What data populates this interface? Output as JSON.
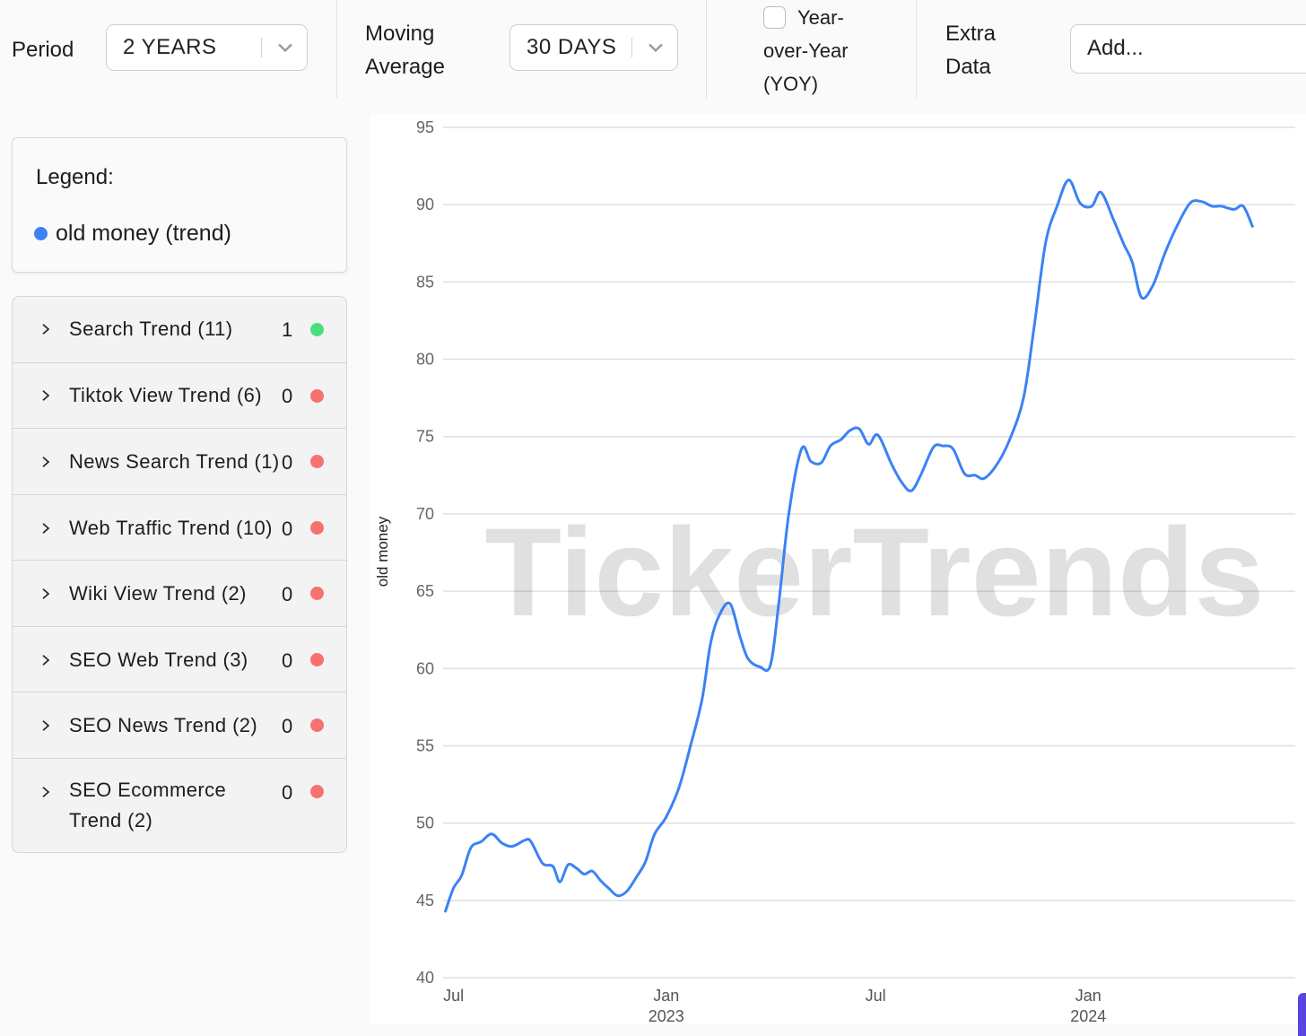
{
  "toolbar": {
    "period_label": "Period",
    "period_value": "2 YEARS",
    "moving_avg_label_line1": "Moving",
    "moving_avg_label_line2": "Average",
    "moving_avg_value": "30 DAYS",
    "yoy_line1": "Year-",
    "yoy_line2": "over-Year",
    "yoy_line3": "(YOY)",
    "yoy_checked": false,
    "extra_label_line1": "Extra",
    "extra_label_line2": "Data",
    "extra_placeholder": "Add..."
  },
  "legend": {
    "title": "Legend:",
    "items": [
      {
        "label": "old money (trend)",
        "color": "#3b82f6"
      }
    ]
  },
  "trend_groups": [
    {
      "label": "Search Trend (11)",
      "count": "1",
      "status_color": "#4ade80"
    },
    {
      "label": "Tiktok View Trend (6)",
      "count": "0",
      "status_color": "#f87171"
    },
    {
      "label": "News Search Trend (1)",
      "count": "0",
      "status_color": "#f87171"
    },
    {
      "label": "Web Traffic Trend (10)",
      "count": "0",
      "status_color": "#f87171"
    },
    {
      "label": "Wiki View Trend (2)",
      "count": "0",
      "status_color": "#f87171"
    },
    {
      "label": "SEO Web Trend (3)",
      "count": "0",
      "status_color": "#f87171"
    },
    {
      "label": "SEO News Trend (2)",
      "count": "0",
      "status_color": "#f87171"
    },
    {
      "label": "SEO Ecommerce Trend (2)",
      "count": "0",
      "status_color": "#f87171"
    }
  ],
  "watermark": "TickerTrends",
  "chart_data": {
    "type": "line",
    "ylabel": "old money",
    "ylim": [
      40,
      95
    ],
    "yticks": [
      40,
      45,
      50,
      55,
      60,
      65,
      70,
      75,
      80,
      85,
      90,
      95
    ],
    "xlim": [
      "2022-06-22",
      "2024-06-28"
    ],
    "xticks": [
      {
        "date": "2022-07-01",
        "label": "Jul",
        "sub": ""
      },
      {
        "date": "2023-01-01",
        "label": "Jan",
        "sub": "2023"
      },
      {
        "date": "2023-07-01",
        "label": "Jul",
        "sub": ""
      },
      {
        "date": "2024-01-01",
        "label": "Jan",
        "sub": "2024"
      }
    ],
    "grid": true,
    "line_color": "#3b82f6",
    "series": [
      {
        "name": "old money (trend)",
        "points": [
          [
            "2022-06-24",
            44.3
          ],
          [
            "2022-07-01",
            45.8
          ],
          [
            "2022-07-08",
            46.6
          ],
          [
            "2022-07-16",
            48.4
          ],
          [
            "2022-07-25",
            48.8
          ],
          [
            "2022-08-03",
            49.3
          ],
          [
            "2022-08-12",
            48.7
          ],
          [
            "2022-08-21",
            48.5
          ],
          [
            "2022-09-01",
            48.9
          ],
          [
            "2022-09-06",
            48.8
          ],
          [
            "2022-09-16",
            47.4
          ],
          [
            "2022-09-25",
            47.2
          ],
          [
            "2022-10-01",
            46.2
          ],
          [
            "2022-10-08",
            47.3
          ],
          [
            "2022-10-15",
            47.1
          ],
          [
            "2022-10-22",
            46.7
          ],
          [
            "2022-10-29",
            46.9
          ],
          [
            "2022-11-05",
            46.3
          ],
          [
            "2022-11-12",
            45.8
          ],
          [
            "2022-11-20",
            45.3
          ],
          [
            "2022-11-28",
            45.6
          ],
          [
            "2022-12-07",
            46.6
          ],
          [
            "2022-12-14",
            47.5
          ],
          [
            "2022-12-22",
            49.3
          ],
          [
            "2023-01-01",
            50.4
          ],
          [
            "2023-01-12",
            52.3
          ],
          [
            "2023-01-22",
            55.0
          ],
          [
            "2023-02-01",
            58.0
          ],
          [
            "2023-02-08",
            61.5
          ],
          [
            "2023-02-15",
            63.3
          ],
          [
            "2023-02-25",
            64.2
          ],
          [
            "2023-03-06",
            62.0
          ],
          [
            "2023-03-13",
            60.6
          ],
          [
            "2023-03-23",
            60.1
          ],
          [
            "2023-04-01",
            60.2
          ],
          [
            "2023-04-08",
            64.0
          ],
          [
            "2023-04-17",
            70.0
          ],
          [
            "2023-04-28",
            74.2
          ],
          [
            "2023-05-06",
            73.4
          ],
          [
            "2023-05-15",
            73.3
          ],
          [
            "2023-05-23",
            74.4
          ],
          [
            "2023-06-01",
            74.8
          ],
          [
            "2023-06-09",
            75.4
          ],
          [
            "2023-06-17",
            75.5
          ],
          [
            "2023-06-25",
            74.5
          ],
          [
            "2023-07-03",
            75.1
          ],
          [
            "2023-07-15",
            73.2
          ],
          [
            "2023-07-24",
            72.0
          ],
          [
            "2023-08-01",
            71.5
          ],
          [
            "2023-08-09",
            72.5
          ],
          [
            "2023-08-20",
            74.3
          ],
          [
            "2023-08-28",
            74.4
          ],
          [
            "2023-09-06",
            74.2
          ],
          [
            "2023-09-16",
            72.6
          ],
          [
            "2023-09-25",
            72.5
          ],
          [
            "2023-10-03",
            72.3
          ],
          [
            "2023-10-14",
            73.2
          ],
          [
            "2023-10-25",
            74.8
          ],
          [
            "2023-11-06",
            77.5
          ],
          [
            "2023-11-15",
            82.0
          ],
          [
            "2023-11-25",
            87.5
          ],
          [
            "2023-12-05",
            89.9
          ],
          [
            "2023-12-15",
            91.6
          ],
          [
            "2023-12-25",
            90.1
          ],
          [
            "2024-01-04",
            89.9
          ],
          [
            "2024-01-12",
            90.8
          ],
          [
            "2024-01-23",
            89.0
          ],
          [
            "2024-02-01",
            87.4
          ],
          [
            "2024-02-08",
            86.3
          ],
          [
            "2024-02-16",
            84.0
          ],
          [
            "2024-02-26",
            84.8
          ],
          [
            "2024-03-07",
            86.8
          ],
          [
            "2024-03-17",
            88.5
          ],
          [
            "2024-03-29",
            90.1
          ],
          [
            "2024-04-08",
            90.2
          ],
          [
            "2024-04-17",
            89.9
          ],
          [
            "2024-04-25",
            89.9
          ],
          [
            "2024-05-06",
            89.7
          ],
          [
            "2024-05-14",
            89.9
          ],
          [
            "2024-05-22",
            88.6
          ]
        ]
      }
    ]
  }
}
